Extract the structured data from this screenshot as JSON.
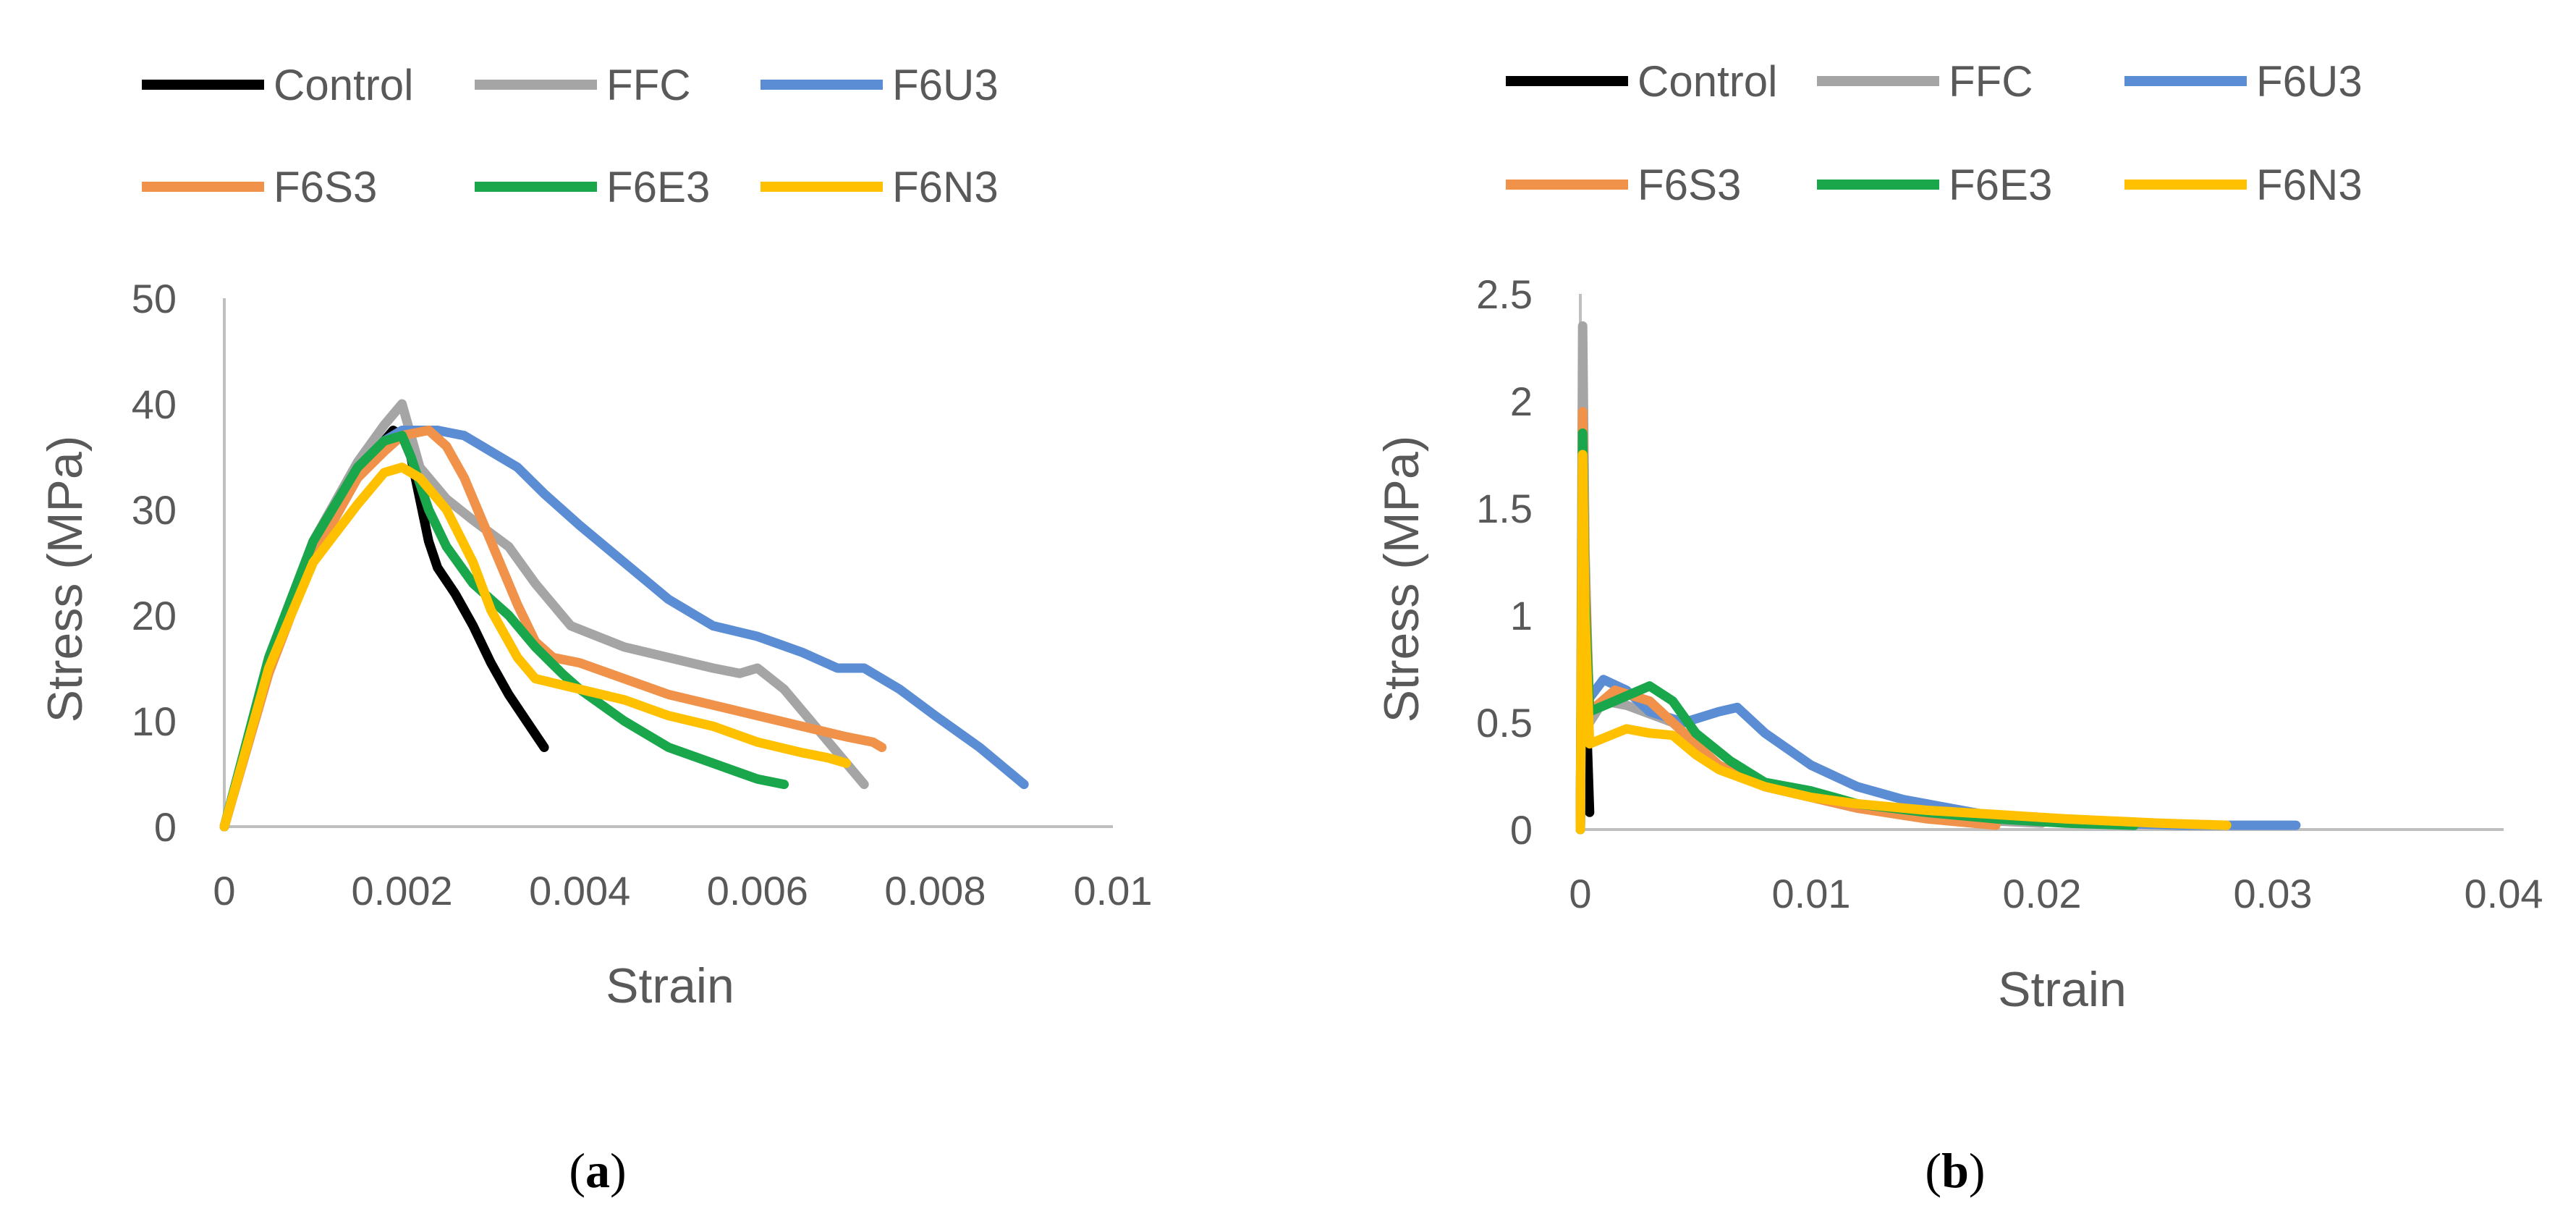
{
  "chart_data": [
    {
      "type": "line",
      "panel": "a",
      "title": "",
      "xlabel": "Strain",
      "ylabel": "Stress (MPa)",
      "xlim": [
        0,
        0.01
      ],
      "ylim": [
        0,
        50
      ],
      "xticks": [
        0,
        0.002,
        0.004,
        0.006,
        0.008,
        0.01
      ],
      "yticks": [
        0,
        10,
        20,
        30,
        40,
        50
      ],
      "xtick_labels": [
        "0",
        "0.002",
        "0.004",
        "0.006",
        "0.008",
        "0.01"
      ],
      "ytick_labels": [
        "0",
        "10",
        "20",
        "30",
        "40",
        "50"
      ],
      "grid": false,
      "legend": "top",
      "series": [
        {
          "name": "Control",
          "color": "#000000",
          "points": [
            [
              0,
              0
            ],
            [
              0.0005,
              15
            ],
            [
              0.001,
              26
            ],
            [
              0.0015,
              33.5
            ],
            [
              0.0019,
              37.5
            ],
            [
              0.002,
              37
            ],
            [
              0.0021,
              35
            ],
            [
              0.0022,
              31
            ],
            [
              0.0023,
              27
            ],
            [
              0.0024,
              24.5
            ],
            [
              0.0026,
              22
            ],
            [
              0.0028,
              19
            ],
            [
              0.003,
              15.5
            ],
            [
              0.0032,
              12.5
            ],
            [
              0.0034,
              10
            ],
            [
              0.0036,
              7.5
            ]
          ]
        },
        {
          "name": "FFC",
          "color": "#a5a5a5",
          "points": [
            [
              0,
              0
            ],
            [
              0.0005,
              15
            ],
            [
              0.001,
              27
            ],
            [
              0.0015,
              34.5
            ],
            [
              0.0018,
              38
            ],
            [
              0.002,
              40
            ],
            [
              0.0021,
              37
            ],
            [
              0.0022,
              34
            ],
            [
              0.0025,
              31
            ],
            [
              0.0028,
              29
            ],
            [
              0.0032,
              26.5
            ],
            [
              0.0035,
              23
            ],
            [
              0.0039,
              19
            ],
            [
              0.0045,
              17
            ],
            [
              0.005,
              16
            ],
            [
              0.0055,
              15
            ],
            [
              0.0058,
              14.5
            ],
            [
              0.006,
              15
            ],
            [
              0.0063,
              13
            ],
            [
              0.0066,
              10
            ],
            [
              0.0069,
              7
            ],
            [
              0.0072,
              4
            ]
          ]
        },
        {
          "name": "F6U3",
          "color": "#5b8dd5",
          "points": [
            [
              0,
              0
            ],
            [
              0.0005,
              15
            ],
            [
              0.001,
              26
            ],
            [
              0.0015,
              33
            ],
            [
              0.0018,
              36.5
            ],
            [
              0.002,
              37.5
            ],
            [
              0.0024,
              37.5
            ],
            [
              0.0027,
              37
            ],
            [
              0.003,
              35.5
            ],
            [
              0.0033,
              34
            ],
            [
              0.0036,
              31.5
            ],
            [
              0.004,
              28.5
            ],
            [
              0.0045,
              25
            ],
            [
              0.005,
              21.5
            ],
            [
              0.0055,
              19
            ],
            [
              0.006,
              18
            ],
            [
              0.0065,
              16.5
            ],
            [
              0.0069,
              15
            ],
            [
              0.0072,
              15
            ],
            [
              0.0076,
              13
            ],
            [
              0.008,
              10.5
            ],
            [
              0.0085,
              7.5
            ],
            [
              0.009,
              4
            ]
          ]
        },
        {
          "name": "F6S3",
          "color": "#f0924a",
          "points": [
            [
              0,
              0
            ],
            [
              0.0005,
              14.5
            ],
            [
              0.001,
              25.5
            ],
            [
              0.0015,
              33
            ],
            [
              0.0018,
              35.5
            ],
            [
              0.002,
              37
            ],
            [
              0.0023,
              37.5
            ],
            [
              0.0025,
              36
            ],
            [
              0.0027,
              33
            ],
            [
              0.003,
              27
            ],
            [
              0.0033,
              21
            ],
            [
              0.0035,
              17.5
            ],
            [
              0.0037,
              16
            ],
            [
              0.004,
              15.5
            ],
            [
              0.0045,
              14
            ],
            [
              0.005,
              12.5
            ],
            [
              0.0055,
              11.5
            ],
            [
              0.006,
              10.5
            ],
            [
              0.0065,
              9.5
            ],
            [
              0.007,
              8.5
            ],
            [
              0.0073,
              8
            ],
            [
              0.0074,
              7.5
            ]
          ]
        },
        {
          "name": "F6E3",
          "color": "#1aa64a",
          "points": [
            [
              0,
              0
            ],
            [
              0.0005,
              16
            ],
            [
              0.001,
              27
            ],
            [
              0.0015,
              34
            ],
            [
              0.0018,
              36.5
            ],
            [
              0.002,
              37
            ],
            [
              0.0021,
              35
            ],
            [
              0.0023,
              30
            ],
            [
              0.0025,
              26.5
            ],
            [
              0.0028,
              23
            ],
            [
              0.0032,
              20
            ],
            [
              0.0035,
              17
            ],
            [
              0.0038,
              14.5
            ],
            [
              0.004,
              13
            ],
            [
              0.0045,
              10
            ],
            [
              0.005,
              7.5
            ],
            [
              0.0055,
              6
            ],
            [
              0.006,
              4.5
            ],
            [
              0.0063,
              4
            ]
          ]
        },
        {
          "name": "F6N3",
          "color": "#ffc000",
          "points": [
            [
              0,
              0
            ],
            [
              0.0005,
              15
            ],
            [
              0.001,
              25
            ],
            [
              0.0015,
              30.5
            ],
            [
              0.0018,
              33.5
            ],
            [
              0.002,
              34
            ],
            [
              0.0022,
              33
            ],
            [
              0.0025,
              30
            ],
            [
              0.0028,
              25
            ],
            [
              0.003,
              20.5
            ],
            [
              0.0033,
              16
            ],
            [
              0.0035,
              14
            ],
            [
              0.004,
              13
            ],
            [
              0.0045,
              12
            ],
            [
              0.005,
              10.5
            ],
            [
              0.0055,
              9.5
            ],
            [
              0.006,
              8
            ],
            [
              0.0065,
              7
            ],
            [
              0.0068,
              6.5
            ],
            [
              0.007,
              6
            ]
          ]
        }
      ]
    },
    {
      "type": "line",
      "panel": "b",
      "title": "",
      "xlabel": "Strain",
      "ylabel": "Stress (MPa)",
      "xlim": [
        0,
        0.04
      ],
      "ylim": [
        0,
        2.5
      ],
      "xticks": [
        0,
        0.01,
        0.02,
        0.03,
        0.04
      ],
      "yticks": [
        0,
        0.5,
        1,
        1.5,
        2,
        2.5
      ],
      "xtick_labels": [
        "0",
        "0.01",
        "0.02",
        "0.03",
        "0.04"
      ],
      "ytick_labels": [
        "0",
        "0.5",
        "1",
        "1.5",
        "2",
        "2.5"
      ],
      "grid": false,
      "legend": "top",
      "series": [
        {
          "name": "Control",
          "color": "#000000",
          "points": [
            [
              0,
              0
            ],
            [
              0.0001,
              1.2
            ],
            [
              0.0002,
              0.8
            ],
            [
              0.0003,
              0.4
            ],
            [
              0.0004,
              0.08
            ]
          ]
        },
        {
          "name": "FFC",
          "color": "#a5a5a5",
          "points": [
            [
              0,
              0
            ],
            [
              0.0001,
              2.35
            ],
            [
              0.0002,
              1.3
            ],
            [
              0.0004,
              0.5
            ],
            [
              0.001,
              0.6
            ],
            [
              0.002,
              0.58
            ],
            [
              0.004,
              0.5
            ],
            [
              0.006,
              0.3
            ],
            [
              0.008,
              0.2
            ],
            [
              0.01,
              0.15
            ],
            [
              0.012,
              0.1
            ],
            [
              0.015,
              0.06
            ],
            [
              0.018,
              0.04
            ],
            [
              0.02,
              0.03
            ]
          ]
        },
        {
          "name": "F6U3",
          "color": "#5b8dd5",
          "points": [
            [
              0,
              0
            ],
            [
              0.0001,
              1.4
            ],
            [
              0.0003,
              0.6
            ],
            [
              0.001,
              0.7
            ],
            [
              0.002,
              0.65
            ],
            [
              0.003,
              0.55
            ],
            [
              0.0045,
              0.5
            ],
            [
              0.006,
              0.55
            ],
            [
              0.0068,
              0.57
            ],
            [
              0.008,
              0.45
            ],
            [
              0.01,
              0.3
            ],
            [
              0.012,
              0.2
            ],
            [
              0.014,
              0.14
            ],
            [
              0.016,
              0.1
            ],
            [
              0.018,
              0.06
            ],
            [
              0.02,
              0.04
            ],
            [
              0.023,
              0.03
            ],
            [
              0.026,
              0.02
            ],
            [
              0.031,
              0.02
            ]
          ]
        },
        {
          "name": "F6S3",
          "color": "#f0924a",
          "points": [
            [
              0,
              0
            ],
            [
              0.0001,
              1.95
            ],
            [
              0.0002,
              1.2
            ],
            [
              0.0004,
              0.55
            ],
            [
              0.0015,
              0.65
            ],
            [
              0.003,
              0.6
            ],
            [
              0.004,
              0.5
            ],
            [
              0.006,
              0.3
            ],
            [
              0.008,
              0.2
            ],
            [
              0.01,
              0.15
            ],
            [
              0.012,
              0.1
            ],
            [
              0.015,
              0.05
            ],
            [
              0.018,
              0.02
            ]
          ]
        },
        {
          "name": "F6E3",
          "color": "#1aa64a",
          "points": [
            [
              0,
              0
            ],
            [
              0.0001,
              1.85
            ],
            [
              0.0002,
              1.1
            ],
            [
              0.0004,
              0.55
            ],
            [
              0.0015,
              0.6
            ],
            [
              0.003,
              0.67
            ],
            [
              0.004,
              0.6
            ],
            [
              0.005,
              0.45
            ],
            [
              0.0065,
              0.32
            ],
            [
              0.008,
              0.22
            ],
            [
              0.01,
              0.18
            ],
            [
              0.012,
              0.12
            ],
            [
              0.015,
              0.08
            ],
            [
              0.018,
              0.05
            ],
            [
              0.021,
              0.03
            ],
            [
              0.024,
              0.02
            ]
          ]
        },
        {
          "name": "F6N3",
          "color": "#ffc000",
          "points": [
            [
              0,
              0
            ],
            [
              0.0001,
              1.75
            ],
            [
              0.0002,
              1.0
            ],
            [
              0.0004,
              0.4
            ],
            [
              0.002,
              0.47
            ],
            [
              0.003,
              0.45
            ],
            [
              0.004,
              0.44
            ],
            [
              0.005,
              0.35
            ],
            [
              0.006,
              0.28
            ],
            [
              0.008,
              0.2
            ],
            [
              0.01,
              0.15
            ],
            [
              0.012,
              0.12
            ],
            [
              0.015,
              0.09
            ],
            [
              0.018,
              0.07
            ],
            [
              0.021,
              0.05
            ],
            [
              0.025,
              0.03
            ],
            [
              0.028,
              0.02
            ]
          ]
        }
      ]
    }
  ],
  "panels": [
    {
      "id": "a",
      "caption": "a"
    },
    {
      "id": "b",
      "caption": "b"
    }
  ]
}
